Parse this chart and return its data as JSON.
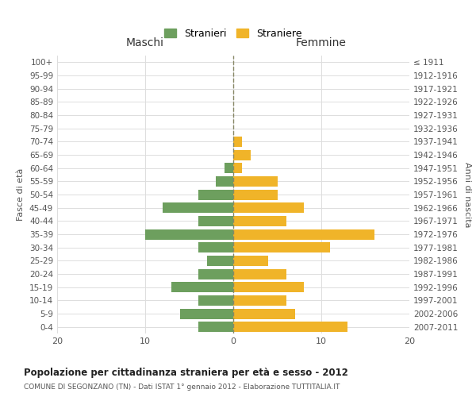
{
  "age_groups": [
    "0-4",
    "5-9",
    "10-14",
    "15-19",
    "20-24",
    "25-29",
    "30-34",
    "35-39",
    "40-44",
    "45-49",
    "50-54",
    "55-59",
    "60-64",
    "65-69",
    "70-74",
    "75-79",
    "80-84",
    "85-89",
    "90-94",
    "95-99",
    "100+"
  ],
  "birth_years": [
    "2007-2011",
    "2002-2006",
    "1997-2001",
    "1992-1996",
    "1987-1991",
    "1982-1986",
    "1977-1981",
    "1972-1976",
    "1967-1971",
    "1962-1966",
    "1957-1961",
    "1952-1956",
    "1947-1951",
    "1942-1946",
    "1937-1941",
    "1932-1936",
    "1927-1931",
    "1922-1926",
    "1917-1921",
    "1912-1916",
    "≤ 1911"
  ],
  "maschi": [
    4,
    6,
    4,
    7,
    4,
    3,
    4,
    10,
    4,
    8,
    4,
    2,
    1,
    0,
    0,
    0,
    0,
    0,
    0,
    0,
    0
  ],
  "femmine": [
    13,
    7,
    6,
    8,
    6,
    4,
    11,
    16,
    6,
    8,
    5,
    5,
    1,
    2,
    1,
    0,
    0,
    0,
    0,
    0,
    0
  ],
  "color_maschi": "#6d9f5e",
  "color_femmine": "#f0b429",
  "title_main": "Popolazione per cittadinanza straniera per età e sesso - 2012",
  "title_sub": "COMUNE DI SEGONZANO (TN) - Dati ISTAT 1° gennaio 2012 - Elaborazione TUTTITALIA.IT",
  "label_maschi": "Maschi",
  "label_femmine": "Femmine",
  "legend_stranieri": "Stranieri",
  "legend_straniere": "Straniere",
  "ylabel_left": "Fasce di età",
  "ylabel_right": "Anni di nascita",
  "xlim": 20,
  "background_color": "#ffffff",
  "grid_color": "#dddddd"
}
